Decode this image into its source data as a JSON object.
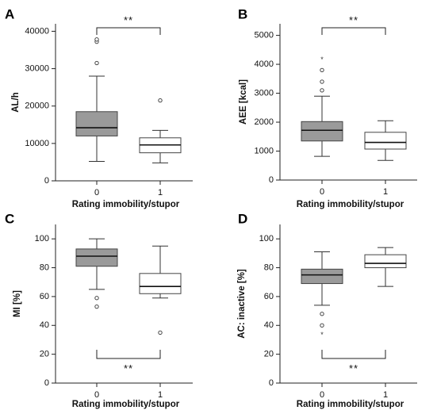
{
  "figure": {
    "xlabel": "Rating immobility/stupor",
    "sig": "**",
    "fill_rating0": "#9a9a9a",
    "fill_rating1": "#ffffff"
  },
  "chart_data": [
    {
      "panel_label": "A",
      "type": "box",
      "categories": [
        "0",
        "1"
      ],
      "xlabel": "Rating immobility/stupor",
      "ylabel": "AL/h",
      "ylim": [
        0,
        42000
      ],
      "yticks": [
        0,
        10000,
        20000,
        30000,
        40000
      ],
      "boxes": [
        {
          "category": "0",
          "min": 5200,
          "q1": 12000,
          "median": 14200,
          "q3": 18500,
          "max": 28000,
          "outliers": [
            31500,
            37200,
            37800
          ],
          "extremes": []
        },
        {
          "category": "1",
          "min": 4800,
          "q1": 7500,
          "median": 9600,
          "q3": 11500,
          "max": 13500,
          "outliers": [
            21500
          ],
          "extremes": []
        }
      ],
      "significance": {
        "label": "**",
        "position": "top"
      }
    },
    {
      "panel_label": "B",
      "type": "box",
      "categories": [
        "0",
        "1"
      ],
      "xlabel": "Rating immobility/stupor",
      "ylabel": "AEE [kcal]",
      "ylim": [
        0,
        5400
      ],
      "yticks": [
        0,
        1000,
        2000,
        3000,
        4000,
        5000
      ],
      "boxes": [
        {
          "category": "0",
          "min": 820,
          "q1": 1350,
          "median": 1720,
          "q3": 2020,
          "max": 2900,
          "outliers": [
            3100,
            3400,
            3800
          ],
          "extremes": [
            4200
          ]
        },
        {
          "category": "1",
          "min": 680,
          "q1": 1070,
          "median": 1300,
          "q3": 1650,
          "max": 2050,
          "outliers": [],
          "extremes": []
        }
      ],
      "significance": {
        "label": "**",
        "position": "top"
      }
    },
    {
      "panel_label": "C",
      "type": "box",
      "categories": [
        "0",
        "1"
      ],
      "xlabel": "Rating immobility/stupor",
      "ylabel": "MI [%]",
      "ylim": [
        0,
        110
      ],
      "yticks": [
        0,
        20,
        40,
        60,
        80,
        100
      ],
      "boxes": [
        {
          "category": "0",
          "min": 65,
          "q1": 81,
          "median": 88,
          "q3": 93,
          "max": 100,
          "outliers": [
            59,
            53
          ],
          "extremes": []
        },
        {
          "category": "1",
          "min": 59,
          "q1": 62,
          "median": 67,
          "q3": 76,
          "max": 95,
          "outliers": [
            35
          ],
          "extremes": []
        }
      ],
      "significance": {
        "label": "**",
        "position": "bottom"
      }
    },
    {
      "panel_label": "D",
      "type": "box",
      "categories": [
        "0",
        "1"
      ],
      "xlabel": "Rating immobility/stupor",
      "ylabel": "AC: inactive [%]",
      "ylim": [
        0,
        110
      ],
      "yticks": [
        0,
        20,
        40,
        60,
        80,
        100
      ],
      "boxes": [
        {
          "category": "0",
          "min": 54,
          "q1": 69,
          "median": 75,
          "q3": 79,
          "max": 91,
          "outliers": [
            48,
            40
          ],
          "extremes": [
            34
          ]
        },
        {
          "category": "1",
          "min": 67,
          "q1": 80,
          "median": 83,
          "q3": 89,
          "max": 94,
          "outliers": [],
          "extremes": []
        }
      ],
      "significance": {
        "label": "**",
        "position": "bottom"
      }
    }
  ]
}
